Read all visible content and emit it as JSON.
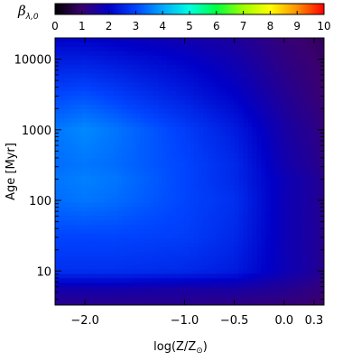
{
  "chart_data": {
    "type": "heatmap",
    "colorbar": {
      "title": "β",
      "title_subscript": "λ,0",
      "range": [
        0,
        10
      ],
      "ticks": [
        "0",
        "1",
        "2",
        "3",
        "4",
        "5",
        "6",
        "7",
        "8",
        "9",
        "10"
      ],
      "colormap": [
        "#000000",
        "#3a0070",
        "#0000c8",
        "#0044ff",
        "#00a8ff",
        "#00ffe0",
        "#00ff40",
        "#a0ff00",
        "#ffff00",
        "#ff9000",
        "#ff0000"
      ]
    },
    "x_axis": {
      "label": "log(Z/Z",
      "label_sun_symbol": "⊙",
      "label_close": ")",
      "range": [
        -2.3,
        0.4
      ],
      "ticks": [
        {
          "value": -2.0,
          "label": "−2.0"
        },
        {
          "value": -1.0,
          "label": "−1.0"
        },
        {
          "value": -0.5,
          "label": "−0.5"
        },
        {
          "value": 0.0,
          "label": "0.0"
        },
        {
          "value": 0.3,
          "label": "0.3"
        }
      ]
    },
    "y_axis": {
      "label": "Age",
      "label_unit": "[Myr]",
      "scale": "log",
      "range": [
        3.3,
        20000
      ],
      "ticks": [
        {
          "value": 10,
          "label": "10"
        },
        {
          "value": 100,
          "label": "100"
        },
        {
          "value": 1000,
          "label": "1000"
        },
        {
          "value": 10000,
          "label": "10000"
        }
      ]
    },
    "field_description_values": {
      "x_nodes": [
        -2.3,
        -2.0,
        -1.7,
        -1.0,
        -0.5,
        0.0,
        0.3,
        0.4
      ],
      "y_nodes_log10": [
        0.52,
        0.75,
        1.0,
        1.5,
        2.0,
        2.3,
        2.5,
        3.0,
        3.5,
        4.0,
        4.3
      ],
      "beta": [
        [
          1.3,
          1.3,
          1.3,
          1.3,
          1.2,
          1.1,
          1.0,
          0.9
        ],
        [
          1.7,
          1.7,
          1.7,
          1.6,
          1.6,
          1.4,
          1.2,
          1.1
        ],
        [
          2.7,
          2.7,
          2.7,
          2.6,
          2.4,
          1.8,
          1.5,
          1.3
        ],
        [
          3.0,
          3.0,
          3.0,
          2.9,
          2.6,
          1.8,
          1.5,
          1.3
        ],
        [
          3.4,
          3.5,
          3.4,
          3.0,
          2.7,
          1.8,
          1.5,
          1.3
        ],
        [
          3.5,
          3.6,
          3.5,
          3.0,
          2.6,
          1.8,
          1.5,
          1.3
        ],
        [
          3.4,
          3.5,
          3.4,
          3.0,
          2.6,
          1.7,
          1.4,
          1.2
        ],
        [
          3.5,
          3.7,
          3.5,
          2.9,
          2.4,
          1.6,
          1.3,
          1.1
        ],
        [
          3.0,
          3.1,
          2.9,
          2.4,
          2.0,
          1.4,
          1.1,
          1.0
        ],
        [
          2.4,
          2.4,
          2.3,
          2.0,
          1.7,
          1.2,
          1.0,
          0.9
        ],
        [
          2.0,
          2.0,
          1.9,
          1.7,
          1.5,
          1.1,
          0.9,
          0.8
        ]
      ]
    }
  }
}
